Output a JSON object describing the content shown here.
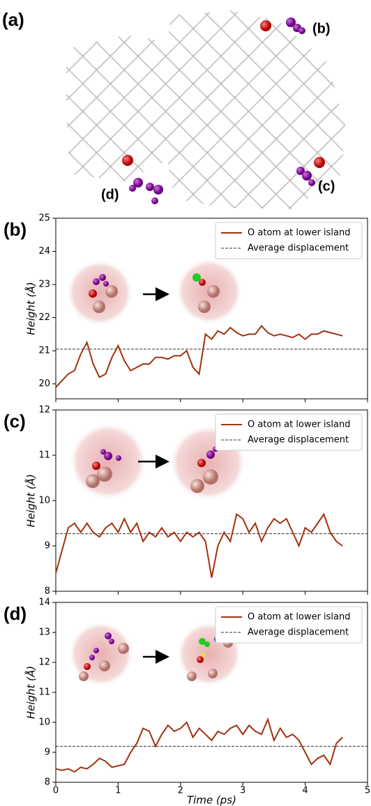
{
  "panel_a": {
    "label": "(a)",
    "site_labels": [
      "(b)",
      "(c)",
      "(d)"
    ]
  },
  "chart_data": [
    {
      "type": "line",
      "panel": "(b)",
      "ylabel": "Height (Å)",
      "show_xtick_labels": false,
      "x": [
        0,
        0.1,
        0.2,
        0.3,
        0.4,
        0.5,
        0.6,
        0.7,
        0.8,
        0.9,
        1.0,
        1.1,
        1.2,
        1.3,
        1.4,
        1.5,
        1.6,
        1.7,
        1.8,
        1.9,
        2.0,
        2.1,
        2.2,
        2.3,
        2.4,
        2.5,
        2.6,
        2.7,
        2.8,
        2.9,
        3.0,
        3.1,
        3.2,
        3.3,
        3.4,
        3.5,
        3.6,
        3.7,
        3.8,
        3.9,
        4.0,
        4.1,
        4.2,
        4.3,
        4.4,
        4.5,
        4.6
      ],
      "series": [
        {
          "name": "O atom at lower island",
          "color": "#a0320f",
          "values": [
            19.9,
            20.1,
            20.3,
            20.4,
            20.9,
            21.25,
            20.6,
            20.2,
            20.3,
            20.8,
            21.15,
            20.7,
            20.4,
            20.5,
            20.6,
            20.6,
            20.8,
            20.8,
            20.75,
            20.85,
            20.85,
            21.0,
            20.5,
            20.3,
            21.5,
            21.35,
            21.6,
            21.5,
            21.7,
            21.55,
            21.45,
            21.5,
            21.5,
            21.75,
            21.55,
            21.45,
            21.5,
            21.45,
            21.4,
            21.5,
            21.35,
            21.5,
            21.5,
            21.6,
            21.55,
            21.5,
            21.45
          ]
        }
      ],
      "reference_line": {
        "name": "Average displacement",
        "value": 21.05,
        "color": "#333333"
      },
      "xlim": [
        0,
        5
      ],
      "xticks": [
        0,
        1,
        2,
        3,
        4,
        5
      ],
      "ylim": [
        19.55,
        25
      ],
      "yticks": [
        20,
        21,
        22,
        23,
        24,
        25
      ],
      "legend": "upper right"
    },
    {
      "type": "line",
      "panel": "(c)",
      "ylabel": "Height (Å)",
      "show_xtick_labels": false,
      "x": [
        0,
        0.1,
        0.2,
        0.3,
        0.4,
        0.5,
        0.6,
        0.7,
        0.8,
        0.9,
        1.0,
        1.1,
        1.2,
        1.3,
        1.4,
        1.5,
        1.6,
        1.7,
        1.8,
        1.9,
        2.0,
        2.1,
        2.2,
        2.3,
        2.4,
        2.5,
        2.6,
        2.7,
        2.8,
        2.9,
        3.0,
        3.1,
        3.2,
        3.3,
        3.4,
        3.5,
        3.6,
        3.7,
        3.8,
        3.9,
        4.0,
        4.1,
        4.2,
        4.3,
        4.4,
        4.5,
        4.6
      ],
      "series": [
        {
          "name": "O atom at lower island",
          "color": "#a0320f",
          "values": [
            8.4,
            8.9,
            9.4,
            9.5,
            9.3,
            9.5,
            9.3,
            9.2,
            9.4,
            9.5,
            9.3,
            9.6,
            9.3,
            9.5,
            9.1,
            9.3,
            9.2,
            9.4,
            9.2,
            9.3,
            9.1,
            9.3,
            9.2,
            9.3,
            9.1,
            8.3,
            9.0,
            9.3,
            9.1,
            9.7,
            9.6,
            9.3,
            9.5,
            9.1,
            9.4,
            9.6,
            9.5,
            9.6,
            9.3,
            9.0,
            9.4,
            9.3,
            9.5,
            9.7,
            9.3,
            9.1,
            9.0
          ]
        }
      ],
      "reference_line": {
        "name": "Average displacement",
        "value": 9.27,
        "color": "#333333"
      },
      "xlim": [
        0,
        5
      ],
      "xticks": [
        0,
        1,
        2,
        3,
        4,
        5
      ],
      "ylim": [
        8,
        12
      ],
      "yticks": [
        8,
        9,
        10,
        11,
        12
      ],
      "legend": "upper right"
    },
    {
      "type": "line",
      "panel": "(d)",
      "ylabel": "Height (Å)",
      "xlabel": "Time (ps)",
      "show_xtick_labels": true,
      "x": [
        0,
        0.1,
        0.2,
        0.3,
        0.4,
        0.5,
        0.6,
        0.7,
        0.8,
        0.9,
        1.0,
        1.1,
        1.2,
        1.3,
        1.4,
        1.5,
        1.6,
        1.7,
        1.8,
        1.9,
        2.0,
        2.1,
        2.2,
        2.3,
        2.4,
        2.5,
        2.6,
        2.7,
        2.8,
        2.9,
        3.0,
        3.1,
        3.2,
        3.3,
        3.4,
        3.5,
        3.6,
        3.7,
        3.8,
        3.9,
        4.0,
        4.1,
        4.2,
        4.3,
        4.4,
        4.5,
        4.6
      ],
      "series": [
        {
          "name": "O atom at lower island",
          "color": "#a0320f",
          "values": [
            8.45,
            8.4,
            8.45,
            8.35,
            8.5,
            8.45,
            8.6,
            8.8,
            8.7,
            8.5,
            8.55,
            8.6,
            9.0,
            9.3,
            9.8,
            9.7,
            9.2,
            9.6,
            9.9,
            9.7,
            9.8,
            10.0,
            9.5,
            9.8,
            9.6,
            9.4,
            9.7,
            9.6,
            9.8,
            9.9,
            9.6,
            9.9,
            9.7,
            9.6,
            10.1,
            9.4,
            9.8,
            9.5,
            9.6,
            9.4,
            9.0,
            8.6,
            8.8,
            8.9,
            8.6,
            9.3,
            9.5
          ]
        }
      ],
      "reference_line": {
        "name": "Average displacement",
        "value": 9.2,
        "color": "#333333"
      },
      "xlim": [
        0,
        5
      ],
      "xticks": [
        0,
        1,
        2,
        3,
        4,
        5
      ],
      "ylim": [
        8,
        14
      ],
      "yticks": [
        8,
        9,
        10,
        11,
        12,
        13,
        14
      ],
      "legend": "upper right"
    }
  ]
}
